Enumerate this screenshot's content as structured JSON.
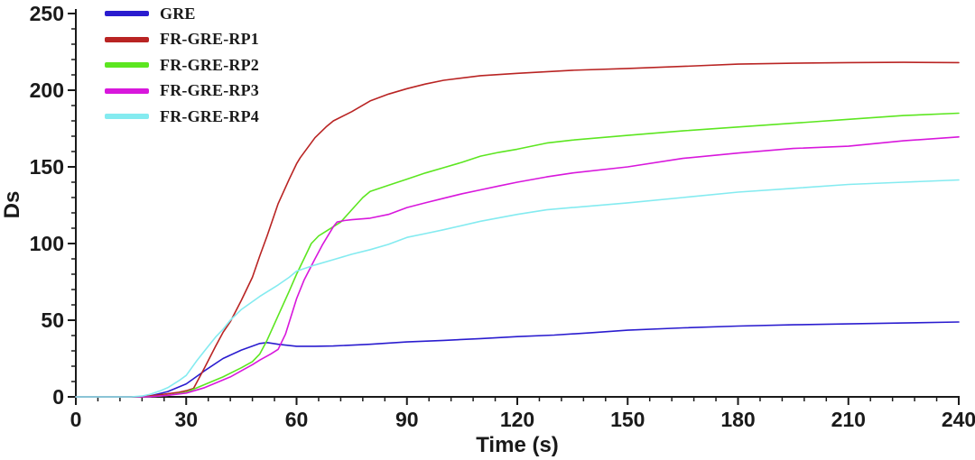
{
  "chart_data": {
    "type": "line",
    "title": "",
    "xlabel": "Time (s)",
    "ylabel": "Ds",
    "xlim": [
      0,
      240
    ],
    "ylim": [
      0,
      250
    ],
    "x_major_ticks": [
      0,
      30,
      60,
      90,
      120,
      150,
      180,
      210,
      240
    ],
    "x_minor_step": 6,
    "y_major_ticks": [
      0,
      50,
      100,
      150,
      200,
      250
    ],
    "y_minor_step": 10,
    "grid": false,
    "legend_position": "top-left",
    "axis_color": "#1a1a1a",
    "series": [
      {
        "name": "GRE",
        "color": "#2a1ccf",
        "points": [
          [
            0,
            0
          ],
          [
            10,
            0
          ],
          [
            18,
            0
          ],
          [
            20,
            0.5
          ],
          [
            25,
            3.5
          ],
          [
            30,
            8.5
          ],
          [
            35,
            17
          ],
          [
            40,
            25
          ],
          [
            45,
            30.5
          ],
          [
            50,
            34.8
          ],
          [
            52,
            35.4
          ],
          [
            55,
            34.3
          ],
          [
            60,
            33
          ],
          [
            65,
            33
          ],
          [
            70,
            33.2
          ],
          [
            80,
            34.3
          ],
          [
            90,
            35.8
          ],
          [
            100,
            36.8
          ],
          [
            110,
            38
          ],
          [
            120,
            39.3
          ],
          [
            130,
            40.3
          ],
          [
            140,
            41.8
          ],
          [
            150,
            43.5
          ],
          [
            165,
            45
          ],
          [
            180,
            46.2
          ],
          [
            195,
            47
          ],
          [
            210,
            47.6
          ],
          [
            225,
            48.2
          ],
          [
            240,
            48.8
          ]
        ]
      },
      {
        "name": "FR-GRE-RP1",
        "color": "#b92423",
        "points": [
          [
            0,
            0
          ],
          [
            10,
            0
          ],
          [
            18,
            0
          ],
          [
            20,
            0.5
          ],
          [
            25,
            2
          ],
          [
            28,
            3
          ],
          [
            30,
            4
          ],
          [
            32,
            5.5
          ],
          [
            35,
            19
          ],
          [
            38,
            33
          ],
          [
            40,
            42
          ],
          [
            42,
            49
          ],
          [
            45,
            63
          ],
          [
            48,
            78
          ],
          [
            50,
            92
          ],
          [
            52,
            105
          ],
          [
            55,
            126
          ],
          [
            58,
            142
          ],
          [
            60,
            152
          ],
          [
            61,
            156
          ],
          [
            65,
            169
          ],
          [
            68,
            176
          ],
          [
            70,
            180
          ],
          [
            75,
            186
          ],
          [
            80,
            193
          ],
          [
            85,
            197.5
          ],
          [
            90,
            201
          ],
          [
            95,
            204
          ],
          [
            100,
            206.5
          ],
          [
            110,
            209.5
          ],
          [
            120,
            211
          ],
          [
            135,
            213
          ],
          [
            150,
            214.2
          ],
          [
            165,
            215.5
          ],
          [
            180,
            217
          ],
          [
            195,
            217.6
          ],
          [
            210,
            218
          ],
          [
            225,
            218.2
          ],
          [
            240,
            218
          ]
        ]
      },
      {
        "name": "FR-GRE-RP2",
        "color": "#5ce620",
        "points": [
          [
            0,
            0
          ],
          [
            10,
            0
          ],
          [
            20,
            0
          ],
          [
            25,
            1
          ],
          [
            30,
            3
          ],
          [
            35,
            8
          ],
          [
            40,
            13
          ],
          [
            45,
            19
          ],
          [
            48,
            23
          ],
          [
            50,
            28
          ],
          [
            52,
            37
          ],
          [
            55,
            53
          ],
          [
            58,
            69
          ],
          [
            60,
            80
          ],
          [
            62,
            90
          ],
          [
            64,
            100
          ],
          [
            66,
            105
          ],
          [
            68,
            108
          ],
          [
            70,
            111
          ],
          [
            72,
            114
          ],
          [
            75,
            122
          ],
          [
            78,
            130
          ],
          [
            80,
            134
          ],
          [
            85,
            138
          ],
          [
            90,
            142
          ],
          [
            95,
            146
          ],
          [
            100,
            149.5
          ],
          [
            105,
            153
          ],
          [
            110,
            157
          ],
          [
            115,
            159.5
          ],
          [
            120,
            161.5
          ],
          [
            128,
            165.5
          ],
          [
            135,
            167.5
          ],
          [
            150,
            170.5
          ],
          [
            165,
            173.5
          ],
          [
            180,
            176
          ],
          [
            195,
            178.5
          ],
          [
            210,
            181
          ],
          [
            225,
            183.5
          ],
          [
            240,
            185
          ]
        ]
      },
      {
        "name": "FR-GRE-RP3",
        "color": "#d817dc",
        "points": [
          [
            0,
            0
          ],
          [
            10,
            0
          ],
          [
            20,
            0
          ],
          [
            25,
            1
          ],
          [
            30,
            2.5
          ],
          [
            35,
            6
          ],
          [
            40,
            11
          ],
          [
            42,
            13
          ],
          [
            45,
            17
          ],
          [
            48,
            21
          ],
          [
            50,
            24
          ],
          [
            53,
            28
          ],
          [
            55,
            31
          ],
          [
            57,
            41
          ],
          [
            60,
            64
          ],
          [
            62,
            76
          ],
          [
            65,
            90
          ],
          [
            67,
            99
          ],
          [
            70,
            111
          ],
          [
            71,
            114
          ],
          [
            73,
            115
          ],
          [
            75,
            115.5
          ],
          [
            80,
            116.5
          ],
          [
            85,
            119
          ],
          [
            90,
            123.5
          ],
          [
            95,
            126.5
          ],
          [
            100,
            129.5
          ],
          [
            105,
            132.5
          ],
          [
            110,
            135
          ],
          [
            115,
            137.5
          ],
          [
            120,
            140
          ],
          [
            128,
            143.5
          ],
          [
            135,
            146
          ],
          [
            150,
            150
          ],
          [
            165,
            155.5
          ],
          [
            180,
            159
          ],
          [
            195,
            162
          ],
          [
            210,
            163.5
          ],
          [
            225,
            167
          ],
          [
            240,
            169.5
          ]
        ]
      },
      {
        "name": "FR-GRE-RP4",
        "color": "#84ebf0",
        "points": [
          [
            0,
            0
          ],
          [
            10,
            0
          ],
          [
            15,
            0
          ],
          [
            18,
            0.5
          ],
          [
            20,
            1.5
          ],
          [
            23,
            4
          ],
          [
            25,
            6
          ],
          [
            28,
            10.5
          ],
          [
            30,
            14
          ],
          [
            33,
            24
          ],
          [
            35,
            30
          ],
          [
            38,
            39
          ],
          [
            40,
            44
          ],
          [
            42,
            50
          ],
          [
            45,
            57
          ],
          [
            50,
            65.5
          ],
          [
            55,
            73
          ],
          [
            58,
            78
          ],
          [
            60,
            82
          ],
          [
            65,
            86
          ],
          [
            70,
            89.5
          ],
          [
            75,
            93
          ],
          [
            80,
            96
          ],
          [
            85,
            99.5
          ],
          [
            90,
            104
          ],
          [
            95,
            106.5
          ],
          [
            100,
            109
          ],
          [
            110,
            114.5
          ],
          [
            120,
            119
          ],
          [
            128,
            122
          ],
          [
            135,
            123.5
          ],
          [
            150,
            126.5
          ],
          [
            165,
            130
          ],
          [
            180,
            133.5
          ],
          [
            195,
            136
          ],
          [
            210,
            138.5
          ],
          [
            225,
            140
          ],
          [
            240,
            141.5
          ]
        ]
      }
    ]
  }
}
